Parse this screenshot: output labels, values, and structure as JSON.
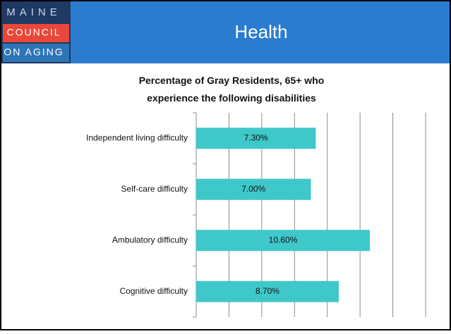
{
  "header": {
    "title": "Health",
    "logo": [
      "MAINE",
      "COUNCIL",
      "ON AGING"
    ]
  },
  "chart_data": {
    "type": "bar",
    "orientation": "horizontal",
    "title": "Percentage of Gray Residents, 65+ who experience the following disabilities",
    "categories": [
      "Independent living difficulty",
      "Self-care difficulty",
      "Ambulatory difficulty",
      "Cognitive difficulty"
    ],
    "values": [
      7.3,
      7.0,
      10.6,
      8.7
    ],
    "value_labels": [
      "7.30%",
      "7.00%",
      "10.60%",
      "8.70%"
    ],
    "color": "#3fc8c9",
    "xlim": [
      0,
      14
    ],
    "xticks": [
      0,
      2,
      4,
      6,
      8,
      10,
      12,
      14
    ],
    "grid": true
  }
}
